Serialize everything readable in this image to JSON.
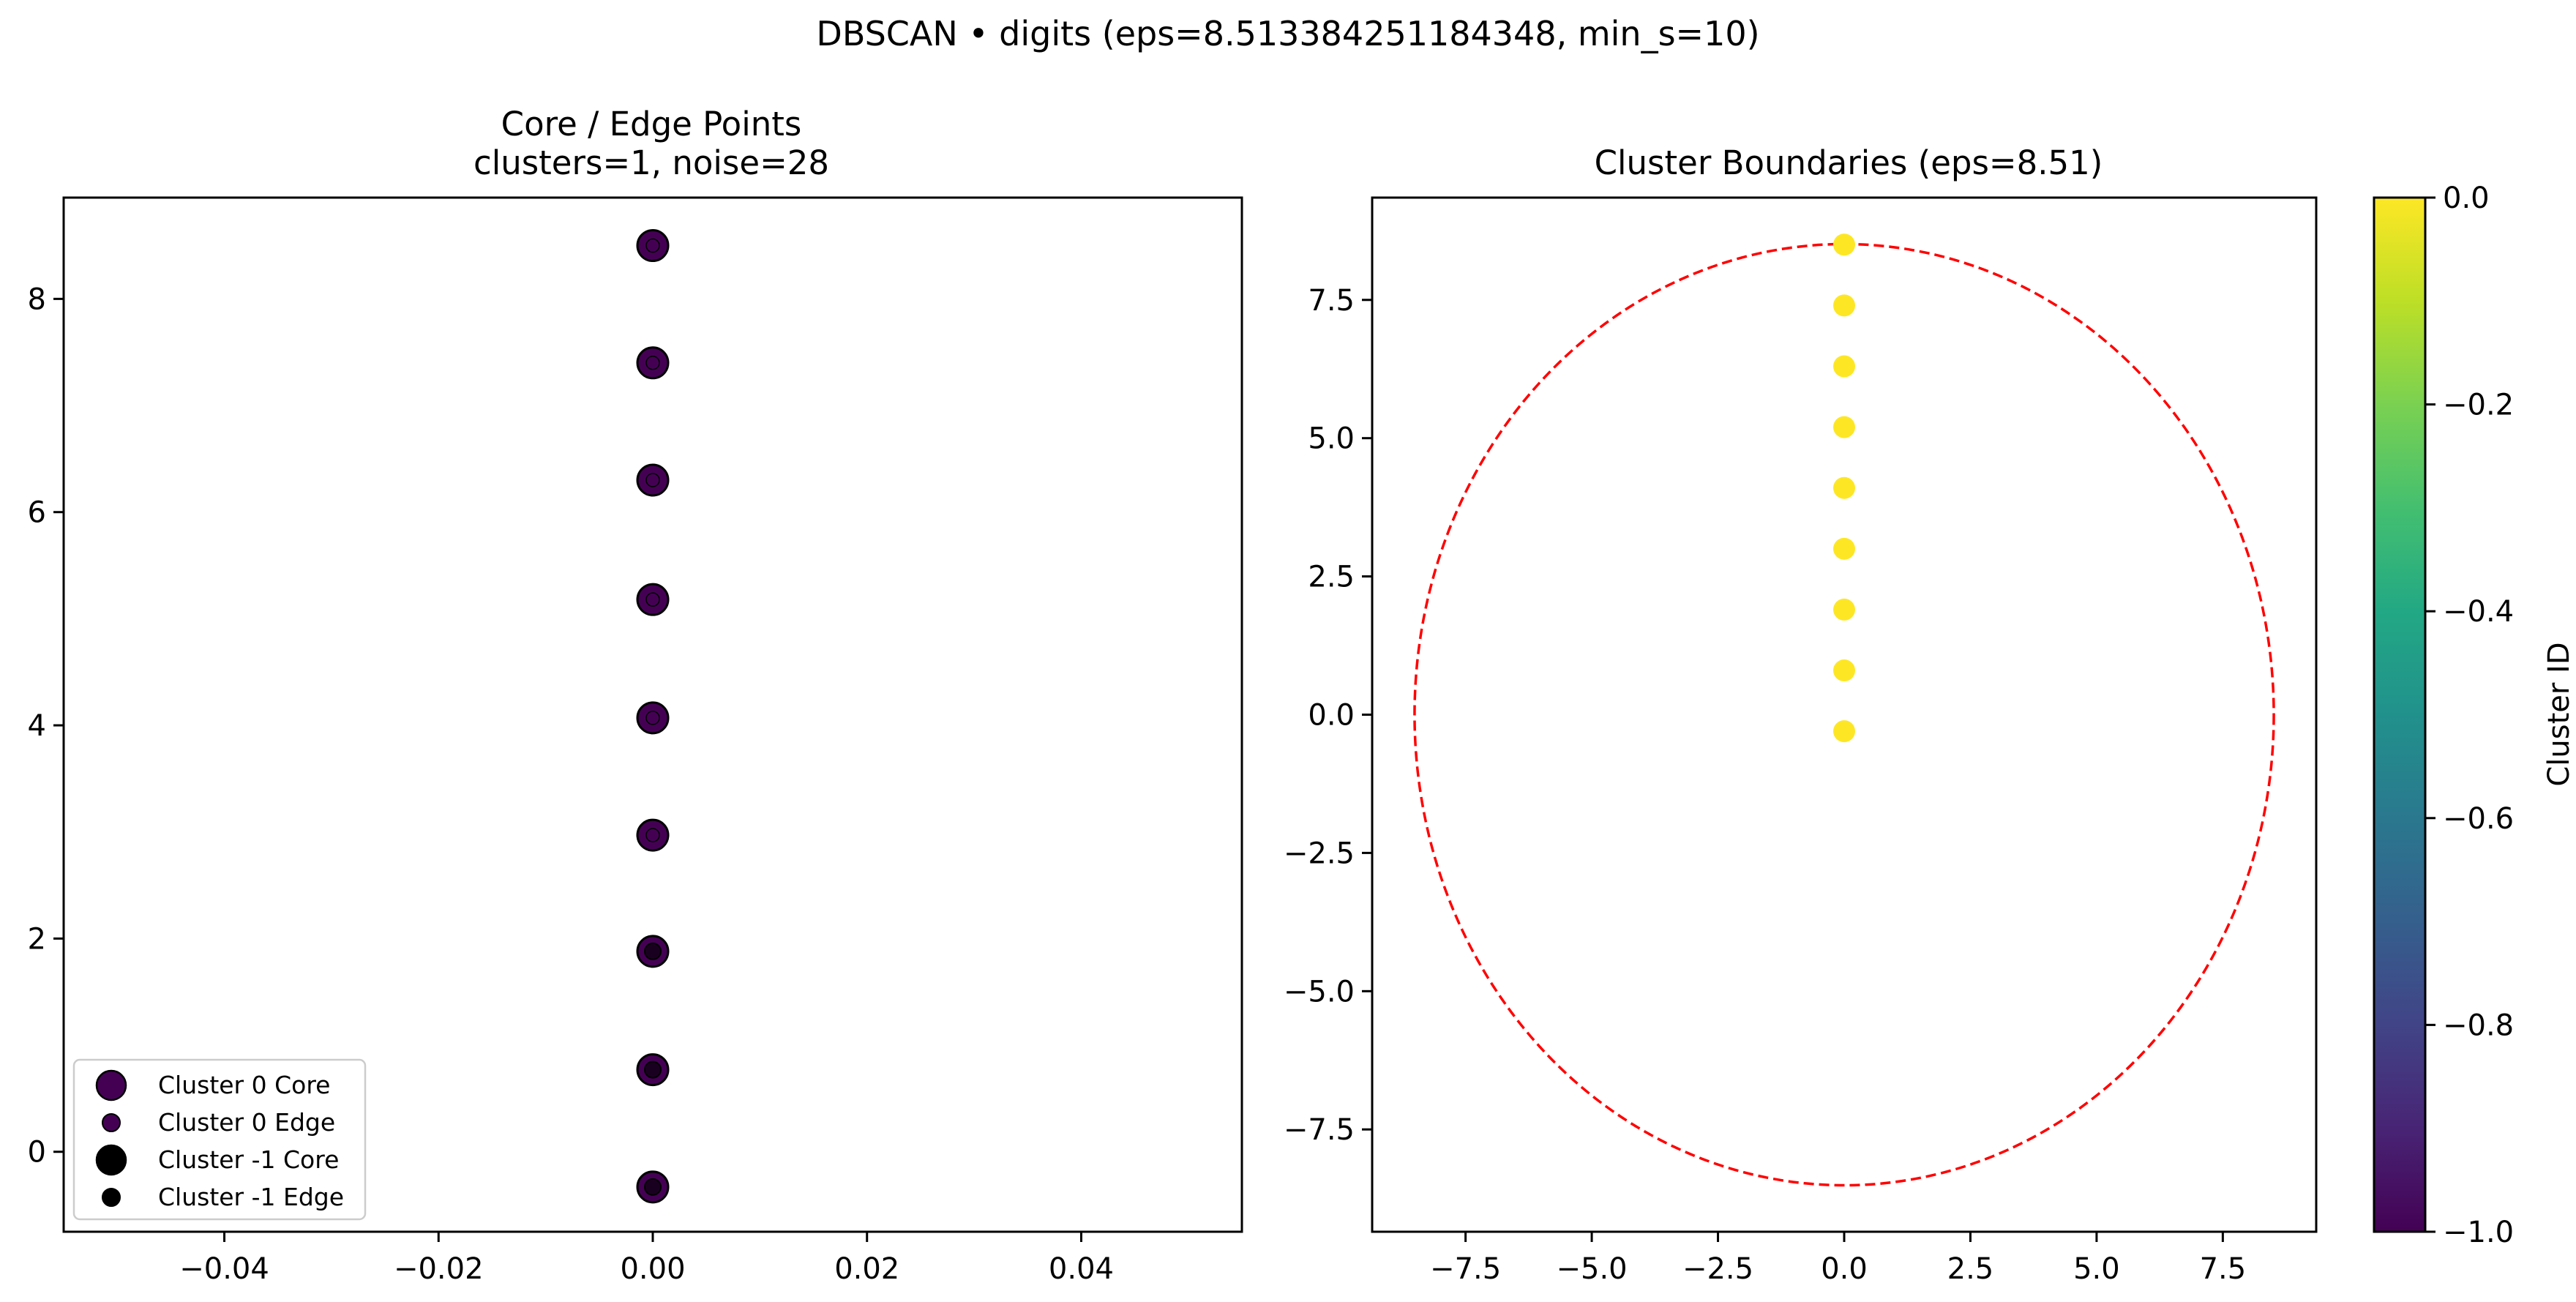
{
  "figure": {
    "suptitle": "DBSCAN • digits  (eps=8.513384251184348, min_s=10)"
  },
  "chart_data": [
    {
      "type": "scatter",
      "title": "Core / Edge Points",
      "subtitle": "clusters=1, noise=28",
      "xlabel": "",
      "ylabel": "",
      "xlim": [
        -0.055,
        0.055
      ],
      "ylim": [
        -0.75,
        8.95
      ],
      "xticks": [
        "−0.04",
        "−0.02",
        "0.00",
        "0.02",
        "0.04"
      ],
      "xtick_values": [
        -0.04,
        -0.02,
        0.0,
        0.02,
        0.04
      ],
      "yticks": [
        "0",
        "2",
        "4",
        "6",
        "8"
      ],
      "ytick_values": [
        0,
        2,
        4,
        6,
        8
      ],
      "grid": false,
      "legend_position": "lower-left",
      "legend": [
        {
          "label": "Cluster 0 Core",
          "color": "#440154",
          "kind": "core"
        },
        {
          "label": "Cluster 0 Edge",
          "color": "#440154",
          "kind": "edge"
        },
        {
          "label": "Cluster -1 Core",
          "color": "#000000",
          "kind": "core"
        },
        {
          "label": "Cluster -1 Edge",
          "color": "#000000",
          "kind": "edge"
        }
      ],
      "series": [
        {
          "name": "Cluster 0 Core",
          "color": "#440154",
          "points": [
            [
              0,
              8.5
            ],
            [
              0,
              7.4
            ],
            [
              0,
              6.3
            ],
            [
              0,
              5.18
            ],
            [
              0,
              4.07
            ],
            [
              0,
              2.97
            ]
          ]
        },
        {
          "name": "Cluster 0 Edge",
          "color": "#440154",
          "points": [
            [
              0,
              1.88
            ],
            [
              0,
              0.77
            ],
            [
              0,
              -0.33
            ]
          ]
        }
      ]
    },
    {
      "type": "scatter",
      "title": "Cluster Boundaries  (eps=8.51)",
      "xlabel": "",
      "ylabel": "",
      "xlim": [
        -9.35,
        9.35
      ],
      "ylim": [
        -9.35,
        9.35
      ],
      "xticks": [
        "−7.5",
        "−5.0",
        "−2.5",
        "0.0",
        "2.5",
        "5.0",
        "7.5"
      ],
      "xtick_values": [
        -7.5,
        -5.0,
        -2.5,
        0.0,
        2.5,
        5.0,
        7.5
      ],
      "yticks": [
        "−7.5",
        "−5.0",
        "−2.5",
        "0.0",
        "2.5",
        "5.0",
        "7.5"
      ],
      "ytick_values": [
        -7.5,
        -5.0,
        -2.5,
        0.0,
        2.5,
        5.0,
        7.5
      ],
      "grid": false,
      "points": [
        [
          0,
          8.5
        ],
        [
          0,
          7.4
        ],
        [
          0,
          6.3
        ],
        [
          0,
          5.2
        ],
        [
          0,
          4.1
        ],
        [
          0,
          3.0
        ],
        [
          0,
          1.9
        ],
        [
          0,
          0.8
        ],
        [
          0,
          -0.3
        ]
      ],
      "point_color": "#fde725",
      "boundary": {
        "center": [
          0,
          0
        ],
        "radius": 8.51,
        "color": "#ff0000",
        "style": "dashed"
      },
      "colorbar": {
        "label": "Cluster ID",
        "min": -1.0,
        "max": 0.0,
        "colormap": "viridis",
        "ticks": [
          "0.0",
          "−0.2",
          "−0.4",
          "−0.6",
          "−0.8",
          "−1.0"
        ],
        "tick_values": [
          0.0,
          -0.2,
          -0.4,
          -0.6,
          -0.8,
          -1.0
        ]
      }
    }
  ]
}
